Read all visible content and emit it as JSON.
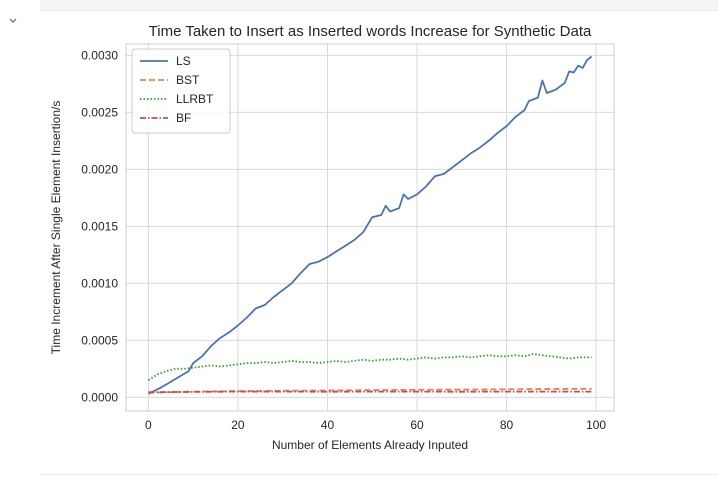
{
  "notebook": {
    "collapse_icon": "chevron-down-icon"
  },
  "chart_data": {
    "type": "line",
    "title": "Time Taken to Insert as Inserted words Increase for Synthetic Data",
    "xlabel": "Number of Elements Already Inputed",
    "ylabel": "Time Increment After Single Element Insertion/s",
    "xlim": [
      -5,
      104
    ],
    "ylim": [
      -0.00012,
      0.0031
    ],
    "x_ticks": [
      0,
      20,
      40,
      60,
      80,
      100
    ],
    "x_tick_labels": [
      "0",
      "20",
      "40",
      "60",
      "80",
      "100"
    ],
    "y_ticks": [
      0.0,
      0.0005,
      0.001,
      0.0015,
      0.002,
      0.0025,
      0.003
    ],
    "y_tick_labels": [
      "0.0000",
      "0.0005",
      "0.0010",
      "0.0015",
      "0.0020",
      "0.0025",
      "0.0030"
    ],
    "grid": true,
    "legend_position": "top-left",
    "series": [
      {
        "name": "LS",
        "color": "#4c72b0",
        "style": "solid",
        "points": [
          [
            0,
            3e-05
          ],
          [
            3,
            9e-05
          ],
          [
            6,
            0.00016
          ],
          [
            9,
            0.00023
          ],
          [
            10,
            0.0003
          ],
          [
            12,
            0.00036
          ],
          [
            14,
            0.00045
          ],
          [
            16,
            0.00052
          ],
          [
            18,
            0.00057
          ],
          [
            20,
            0.00063
          ],
          [
            22,
            0.0007
          ],
          [
            24,
            0.00078
          ],
          [
            26,
            0.00081
          ],
          [
            28,
            0.00088
          ],
          [
            30,
            0.00094
          ],
          [
            32,
            0.001
          ],
          [
            34,
            0.00109
          ],
          [
            36,
            0.00117
          ],
          [
            38,
            0.00119
          ],
          [
            40,
            0.00123
          ],
          [
            42,
            0.00128
          ],
          [
            44,
            0.00133
          ],
          [
            46,
            0.00138
          ],
          [
            48,
            0.00145
          ],
          [
            50,
            0.00158
          ],
          [
            52,
            0.0016
          ],
          [
            53,
            0.00168
          ],
          [
            54,
            0.00163
          ],
          [
            56,
            0.00166
          ],
          [
            57,
            0.00178
          ],
          [
            58,
            0.00174
          ],
          [
            60,
            0.00178
          ],
          [
            62,
            0.00185
          ],
          [
            64,
            0.00194
          ],
          [
            66,
            0.00196
          ],
          [
            68,
            0.00202
          ],
          [
            70,
            0.00208
          ],
          [
            72,
            0.00214
          ],
          [
            74,
            0.00219
          ],
          [
            76,
            0.00225
          ],
          [
            78,
            0.00232
          ],
          [
            80,
            0.00238
          ],
          [
            82,
            0.00246
          ],
          [
            84,
            0.00252
          ],
          [
            85,
            0.0026
          ],
          [
            87,
            0.00263
          ],
          [
            88,
            0.00278
          ],
          [
            89,
            0.00267
          ],
          [
            91,
            0.0027
          ],
          [
            93,
            0.00276
          ],
          [
            94,
            0.00286
          ],
          [
            95,
            0.00285
          ],
          [
            96,
            0.00291
          ],
          [
            97,
            0.00289
          ],
          [
            98,
            0.00296
          ],
          [
            99,
            0.00299
          ]
        ]
      },
      {
        "name": "BST",
        "color": "#dd8452",
        "style": "dashed",
        "points": [
          [
            0,
            4e-05
          ],
          [
            10,
            5e-05
          ],
          [
            20,
            5.5e-05
          ],
          [
            30,
            5.8e-05
          ],
          [
            40,
            6e-05
          ],
          [
            50,
            6.3e-05
          ],
          [
            60,
            6.6e-05
          ],
          [
            70,
            6.8e-05
          ],
          [
            80,
            7e-05
          ],
          [
            90,
            7.3e-05
          ],
          [
            99,
            7.5e-05
          ]
        ]
      },
      {
        "name": "LLRBT",
        "color": "#2ca02c",
        "style": "dotted",
        "points": [
          [
            0,
            0.00015
          ],
          [
            2,
            0.0002
          ],
          [
            4,
            0.00023
          ],
          [
            6,
            0.00025
          ],
          [
            8,
            0.00025
          ],
          [
            10,
            0.00026
          ],
          [
            12,
            0.00027
          ],
          [
            14,
            0.00028
          ],
          [
            16,
            0.00027
          ],
          [
            18,
            0.00028
          ],
          [
            20,
            0.00029
          ],
          [
            22,
            0.0003
          ],
          [
            24,
            0.0003
          ],
          [
            26,
            0.00031
          ],
          [
            28,
            0.0003
          ],
          [
            30,
            0.00031
          ],
          [
            32,
            0.00032
          ],
          [
            34,
            0.00031
          ],
          [
            36,
            0.00031
          ],
          [
            38,
            0.0003
          ],
          [
            40,
            0.00031
          ],
          [
            42,
            0.00032
          ],
          [
            44,
            0.00031
          ],
          [
            46,
            0.00032
          ],
          [
            48,
            0.00033
          ],
          [
            50,
            0.00032
          ],
          [
            52,
            0.00033
          ],
          [
            54,
            0.00033
          ],
          [
            56,
            0.00034
          ],
          [
            58,
            0.00033
          ],
          [
            60,
            0.00034
          ],
          [
            62,
            0.00035
          ],
          [
            64,
            0.00034
          ],
          [
            66,
            0.00035
          ],
          [
            68,
            0.00035
          ],
          [
            70,
            0.00036
          ],
          [
            72,
            0.00035
          ],
          [
            74,
            0.00036
          ],
          [
            76,
            0.00037
          ],
          [
            78,
            0.00036
          ],
          [
            80,
            0.00036
          ],
          [
            82,
            0.00037
          ],
          [
            84,
            0.00036
          ],
          [
            86,
            0.00038
          ],
          [
            88,
            0.00037
          ],
          [
            90,
            0.00036
          ],
          [
            92,
            0.00035
          ],
          [
            94,
            0.00034
          ],
          [
            96,
            0.00035
          ],
          [
            99,
            0.00035
          ]
        ]
      },
      {
        "name": "BF",
        "color": "#c44e52",
        "style": "dashdot",
        "points": [
          [
            0,
            4.5e-05
          ],
          [
            10,
            4.8e-05
          ],
          [
            20,
            5e-05
          ],
          [
            30,
            5e-05
          ],
          [
            40,
            4.9e-05
          ],
          [
            50,
            5e-05
          ],
          [
            60,
            5e-05
          ],
          [
            70,
            4.9e-05
          ],
          [
            80,
            5e-05
          ],
          [
            90,
            5e-05
          ],
          [
            99,
            5e-05
          ]
        ]
      }
    ]
  }
}
